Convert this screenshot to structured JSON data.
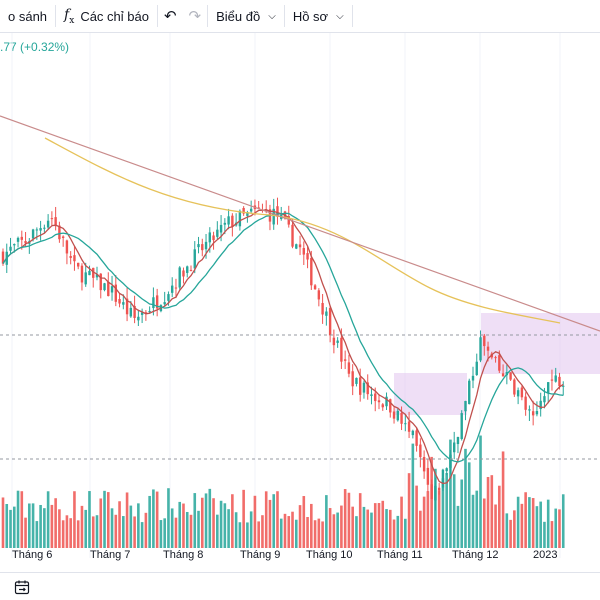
{
  "toolbar": {
    "compare_label": "o sánh",
    "indicators_label": "Các chỉ báo",
    "chart_label": "Biểu đồ",
    "profile_label": "Hồ sơ"
  },
  "legend": {
    "change_text": ".77 (+0.32%)"
  },
  "colors": {
    "up": "#26a69a",
    "down": "#ef5350",
    "ma_short": "#c0504d",
    "ma_mid": "#26a69a",
    "ma_long": "#e6c25a",
    "trend": "#c98b8b",
    "box": "#e1c4ef"
  },
  "chart_data": {
    "type": "candlestick",
    "title": "",
    "xlabel": "",
    "ylabel": "",
    "x_tick_labels": [
      "Tháng 6",
      "Tháng 7",
      "Tháng 8",
      "Tháng 9",
      "Tháng 10",
      "Tháng 11",
      "Tháng 12",
      "2023"
    ],
    "price_path": [
      [
        0.0,
        0.44
      ],
      [
        0.04,
        0.48
      ],
      [
        0.08,
        0.55
      ],
      [
        0.12,
        0.4
      ],
      [
        0.18,
        0.34
      ],
      [
        0.22,
        0.26
      ],
      [
        0.27,
        0.33
      ],
      [
        0.33,
        0.45
      ],
      [
        0.38,
        0.53
      ],
      [
        0.43,
        0.56
      ],
      [
        0.46,
        0.55
      ],
      [
        0.5,
        0.45
      ],
      [
        0.54,
        0.28
      ],
      [
        0.58,
        0.1
      ],
      [
        0.61,
        0.06
      ],
      [
        0.65,
        0.02
      ],
      [
        0.69,
        -0.08
      ],
      [
        0.72,
        -0.25
      ],
      [
        0.75,
        -0.12
      ],
      [
        0.78,
        0.05
      ],
      [
        0.8,
        0.2
      ],
      [
        0.83,
        0.12
      ],
      [
        0.86,
        0.07
      ],
      [
        0.89,
        -0.03
      ],
      [
        0.91,
        0.08
      ],
      [
        0.94,
        0.1
      ]
    ],
    "moving_averages": [
      "short",
      "medium",
      "long"
    ],
    "annotations": [
      "descending trendline",
      "consolidation box near Tháng 11",
      "consolidation box Tháng 12 – 2023",
      "dashed price level line",
      "dashed volume level line"
    ],
    "grid": true,
    "volume": true
  }
}
